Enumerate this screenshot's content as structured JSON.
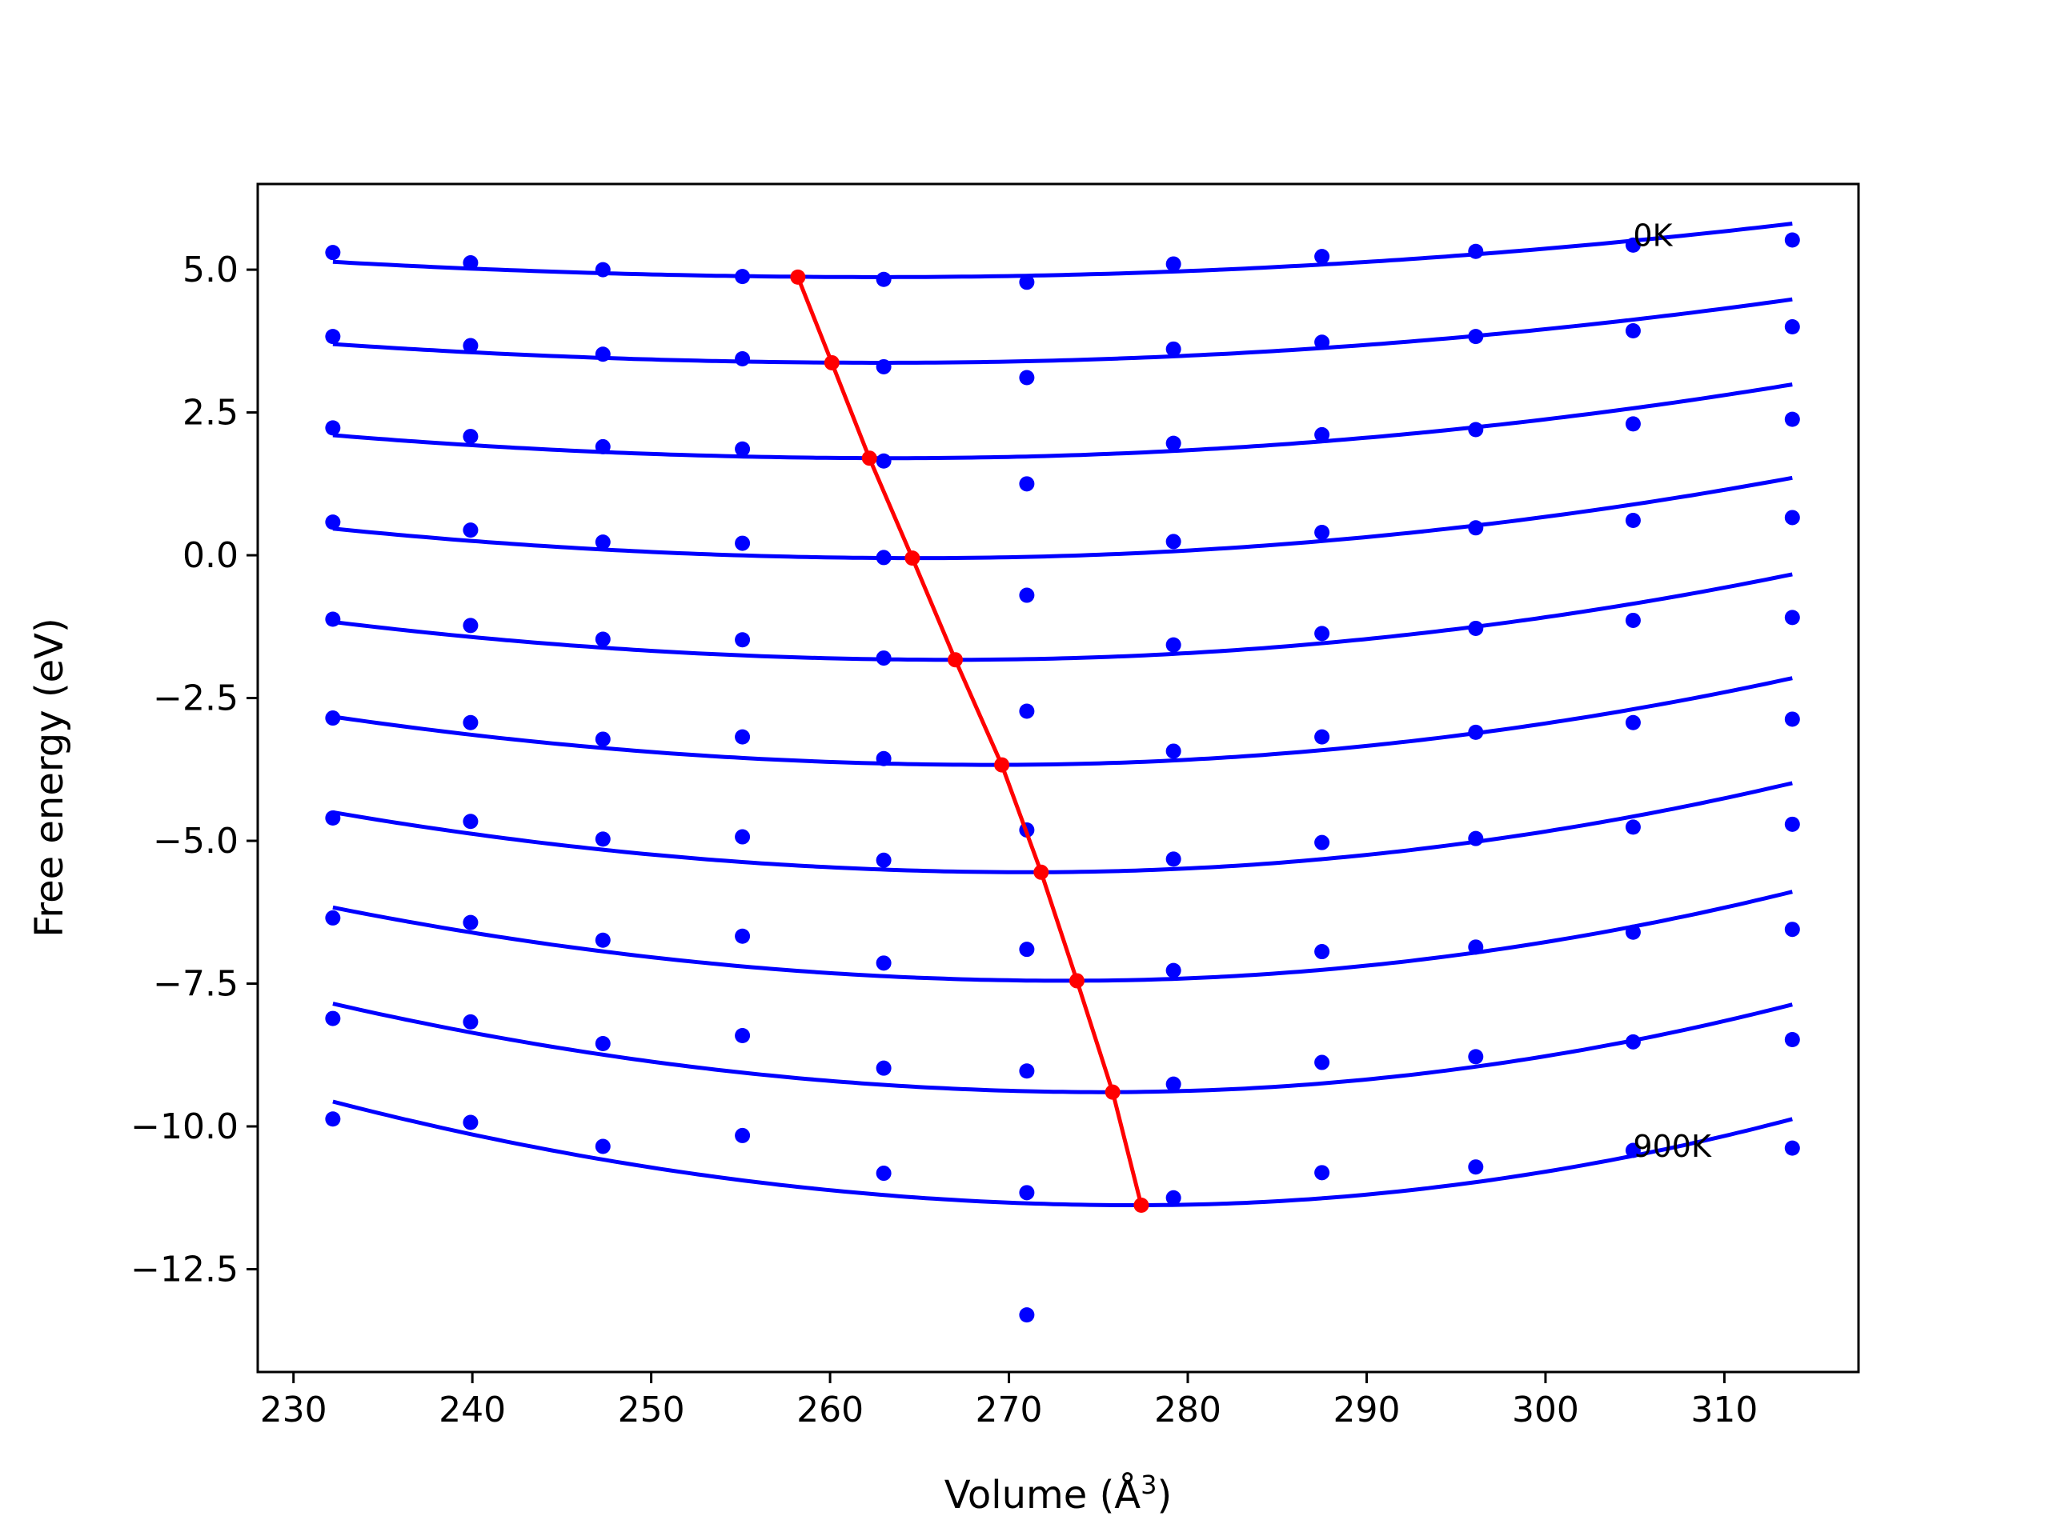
{
  "chart_data": {
    "type": "scatter",
    "title": "",
    "xlabel": "Volume (Å",
    "xlabel_sup": "3",
    "xlabel_close": ")",
    "ylabel": "Free energy (eV)",
    "xlim": [
      228,
      317.5
    ],
    "ylim": [
      -14.3,
      6.5
    ],
    "xticks": [
      230,
      240,
      250,
      260,
      270,
      280,
      290,
      300,
      310
    ],
    "xtick_labels": [
      "230",
      "240",
      "250",
      "260",
      "270",
      "280",
      "290",
      "300",
      "310"
    ],
    "yticks": [
      5.0,
      2.5,
      0.0,
      -2.5,
      -5.0,
      -7.5,
      -10.0,
      -12.5
    ],
    "ytick_labels": [
      "5.0",
      "2.5",
      "0.0",
      "−2.5",
      "−5.0",
      "−7.5",
      "−10.0",
      "−12.5"
    ],
    "grid": false,
    "colors": {
      "points": "#0000ff",
      "fits": "#0000ff",
      "minima": "#ff0000"
    },
    "x": [
      232.2,
      239.9,
      247.3,
      255.1,
      263.0,
      271.0,
      279.2,
      287.5,
      296.1,
      304.9,
      313.8
    ],
    "series": [
      {
        "y": [
          5.3,
          5.12,
          5.0,
          4.88,
          4.83,
          4.78,
          5.1,
          5.23,
          5.32,
          5.43,
          5.52
        ],
        "fit": {
          "e0": 4.87,
          "v0": 262.8,
          "a": 0.000285,
          "b": 0.00036
        }
      },
      {
        "y": [
          3.83,
          3.67,
          3.52,
          3.44,
          3.3,
          3.11,
          3.61,
          3.73,
          3.83,
          3.93,
          4.0
        ],
        "fit": {
          "e0": 3.37,
          "v0": 263.0,
          "a": 0.000345,
          "b": 0.00043
        }
      },
      {
        "y": [
          2.23,
          2.08,
          1.9,
          1.86,
          1.65,
          1.25,
          1.96,
          2.11,
          2.2,
          2.3,
          2.38
        ],
        "fit": {
          "e0": 1.7,
          "v0": 263.5,
          "a": 0.00041,
          "b": 0.00051
        }
      },
      {
        "y": [
          0.58,
          0.44,
          0.23,
          0.21,
          -0.04,
          -0.7,
          0.24,
          0.4,
          0.48,
          0.61,
          0.66
        ],
        "fit": {
          "e0": -0.05,
          "v0": 265.0,
          "a": 0.00048,
          "b": 0.00059
        }
      },
      {
        "y": [
          -1.12,
          -1.23,
          -1.47,
          -1.48,
          -1.8,
          -2.73,
          -1.57,
          -1.37,
          -1.28,
          -1.14,
          -1.09
        ],
        "fit": {
          "e0": -1.83,
          "v0": 266.9,
          "a": 0.00055,
          "b": 0.00068
        }
      },
      {
        "y": [
          -2.85,
          -2.93,
          -3.22,
          -3.18,
          -3.56,
          -4.81,
          -3.43,
          -3.18,
          -3.1,
          -2.93,
          -2.87
        ],
        "fit": {
          "e0": -3.67,
          "v0": 269.1,
          "a": 0.00062,
          "b": 0.00076
        }
      },
      {
        "y": [
          -4.6,
          -4.66,
          -4.97,
          -4.93,
          -5.34,
          -6.9,
          -5.32,
          -5.03,
          -4.96,
          -4.76,
          -4.71
        ],
        "fit": {
          "e0": -5.55,
          "v0": 271.2,
          "a": 0.00069,
          "b": 0.00086
        }
      },
      {
        "y": [
          -6.35,
          -6.43,
          -6.74,
          -6.67,
          -7.14,
          -9.03,
          -7.27,
          -6.94,
          -6.86,
          -6.6,
          -6.55
        ],
        "fit": {
          "e0": -7.45,
          "v0": 273.3,
          "a": 0.00076,
          "b": 0.00095
        }
      },
      {
        "y": [
          -8.11,
          -8.17,
          -8.55,
          -8.41,
          -8.98,
          -11.16,
          -9.26,
          -8.88,
          -8.78,
          -8.52,
          -8.48
        ],
        "fit": {
          "e0": -9.4,
          "v0": 275.4,
          "a": 0.00083,
          "b": 0.00104
        }
      },
      {
        "y": [
          -9.87,
          -9.93,
          -10.35,
          -10.16,
          -10.82,
          -13.3,
          -11.25,
          -10.81,
          -10.71,
          -10.42,
          -10.38
        ],
        "fit": {
          "e0": -11.38,
          "v0": 277.1,
          "a": 0.0009,
          "b": 0.00112
        }
      }
    ],
    "minima": {
      "x": [
        258.2,
        260.1,
        262.2,
        264.6,
        267.0,
        269.6,
        271.8,
        273.8,
        275.8,
        277.4
      ],
      "y": [
        4.87,
        3.37,
        1.7,
        -0.05,
        -1.83,
        -3.67,
        -5.55,
        -7.45,
        -9.4,
        -11.38
      ]
    },
    "annotations": [
      {
        "text": "0K",
        "x": 304.9,
        "y": 5.6
      },
      {
        "text": "900K",
        "x": 304.9,
        "y": -10.35
      }
    ]
  }
}
